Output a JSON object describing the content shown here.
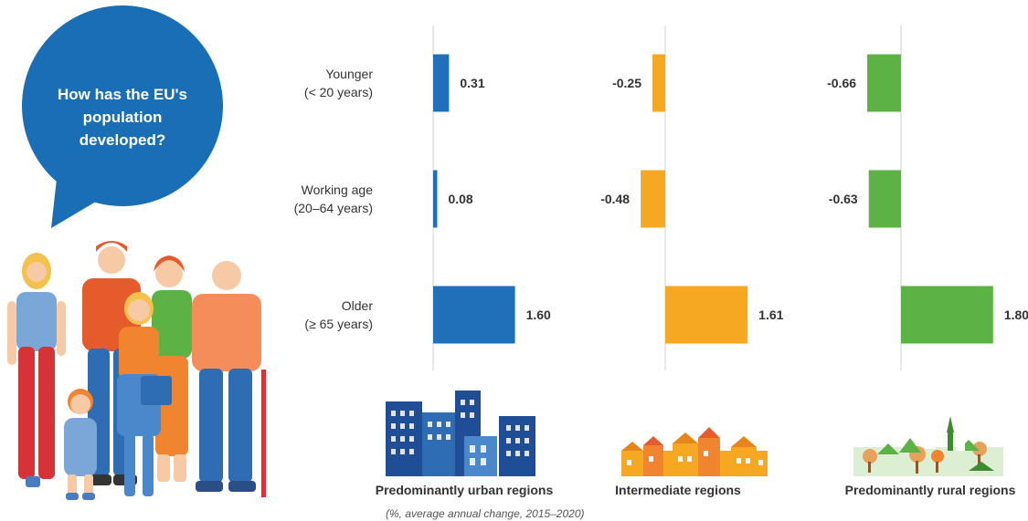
{
  "bubble": {
    "lines": [
      "How has the EU's",
      "population",
      "developed?"
    ],
    "color": "#1a6eb5"
  },
  "chart_data": {
    "type": "bar",
    "orientation": "horizontal",
    "categories": [
      {
        "line1": "Younger",
        "line2": "(< 20 years)"
      },
      {
        "line1": "Working age",
        "line2": "(20–64 years)"
      },
      {
        "line1": "Older",
        "line2": "(≥ 65 years)"
      }
    ],
    "series": [
      {
        "name": "Predominantly urban regions",
        "color": "#1f70b8",
        "values": [
          0.31,
          0.08,
          1.6
        ]
      },
      {
        "name": "Intermediate regions",
        "color": "#f7a823",
        "values": [
          -0.25,
          -0.48,
          1.61
        ]
      },
      {
        "name": "Predominantly rural regions",
        "color": "#5db246",
        "values": [
          -0.66,
          -0.63,
          1.8
        ]
      }
    ],
    "value_labels": [
      [
        "0.31",
        "0.08",
        "1.60"
      ],
      [
        "-0.25",
        "-0.48",
        "1.61"
      ],
      [
        "-0.66",
        "-0.63",
        "1.80"
      ]
    ],
    "note": "(%, average annual change, 2015–2020)"
  }
}
